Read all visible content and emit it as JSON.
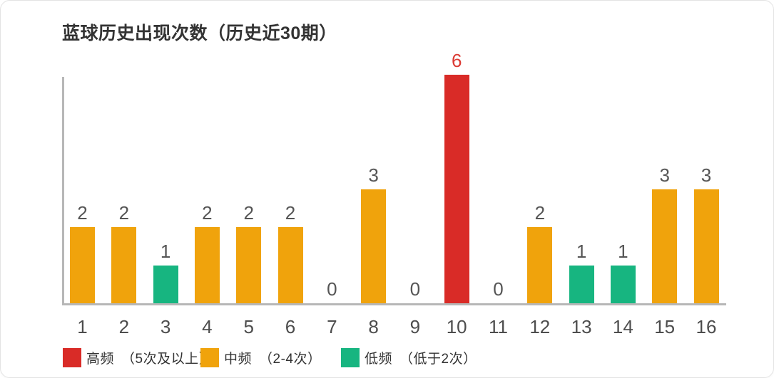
{
  "title": "蓝球历史出现次数（历史近30期）",
  "chart_data": {
    "type": "bar",
    "title": "蓝球历史出现次数（历史近30期）",
    "categories": [
      "1",
      "2",
      "3",
      "4",
      "5",
      "6",
      "7",
      "8",
      "9",
      "10",
      "11",
      "12",
      "13",
      "14",
      "15",
      "16"
    ],
    "values": [
      2,
      2,
      1,
      2,
      2,
      2,
      0,
      3,
      0,
      6,
      0,
      2,
      1,
      1,
      3,
      3
    ],
    "xlabel": "",
    "ylabel": "",
    "ylim": [
      0,
      6
    ],
    "grid": false,
    "value_labels": true,
    "legend_position": "bottom",
    "color_rules": {
      "high_min": 5,
      "mid_min": 2
    },
    "palette": {
      "high": "#d92b27",
      "mid": "#f0a30c",
      "low": "#17b580"
    },
    "value_label_color": "#555555",
    "high_value_label_color": "#db3a33",
    "axis_color": "#b7b7b7",
    "tick_label_color": "#4d4d4d"
  },
  "legend": {
    "items": [
      {
        "name": "high-frequency",
        "label": "高频　（5次及以上）",
        "color": "#d92b27"
      },
      {
        "name": "mid-frequency",
        "label": "中频　（2-4次）",
        "color": "#f0a30c"
      },
      {
        "name": "low-frequency",
        "label": "低频　（低于2次）",
        "color": "#17b580"
      }
    ]
  }
}
